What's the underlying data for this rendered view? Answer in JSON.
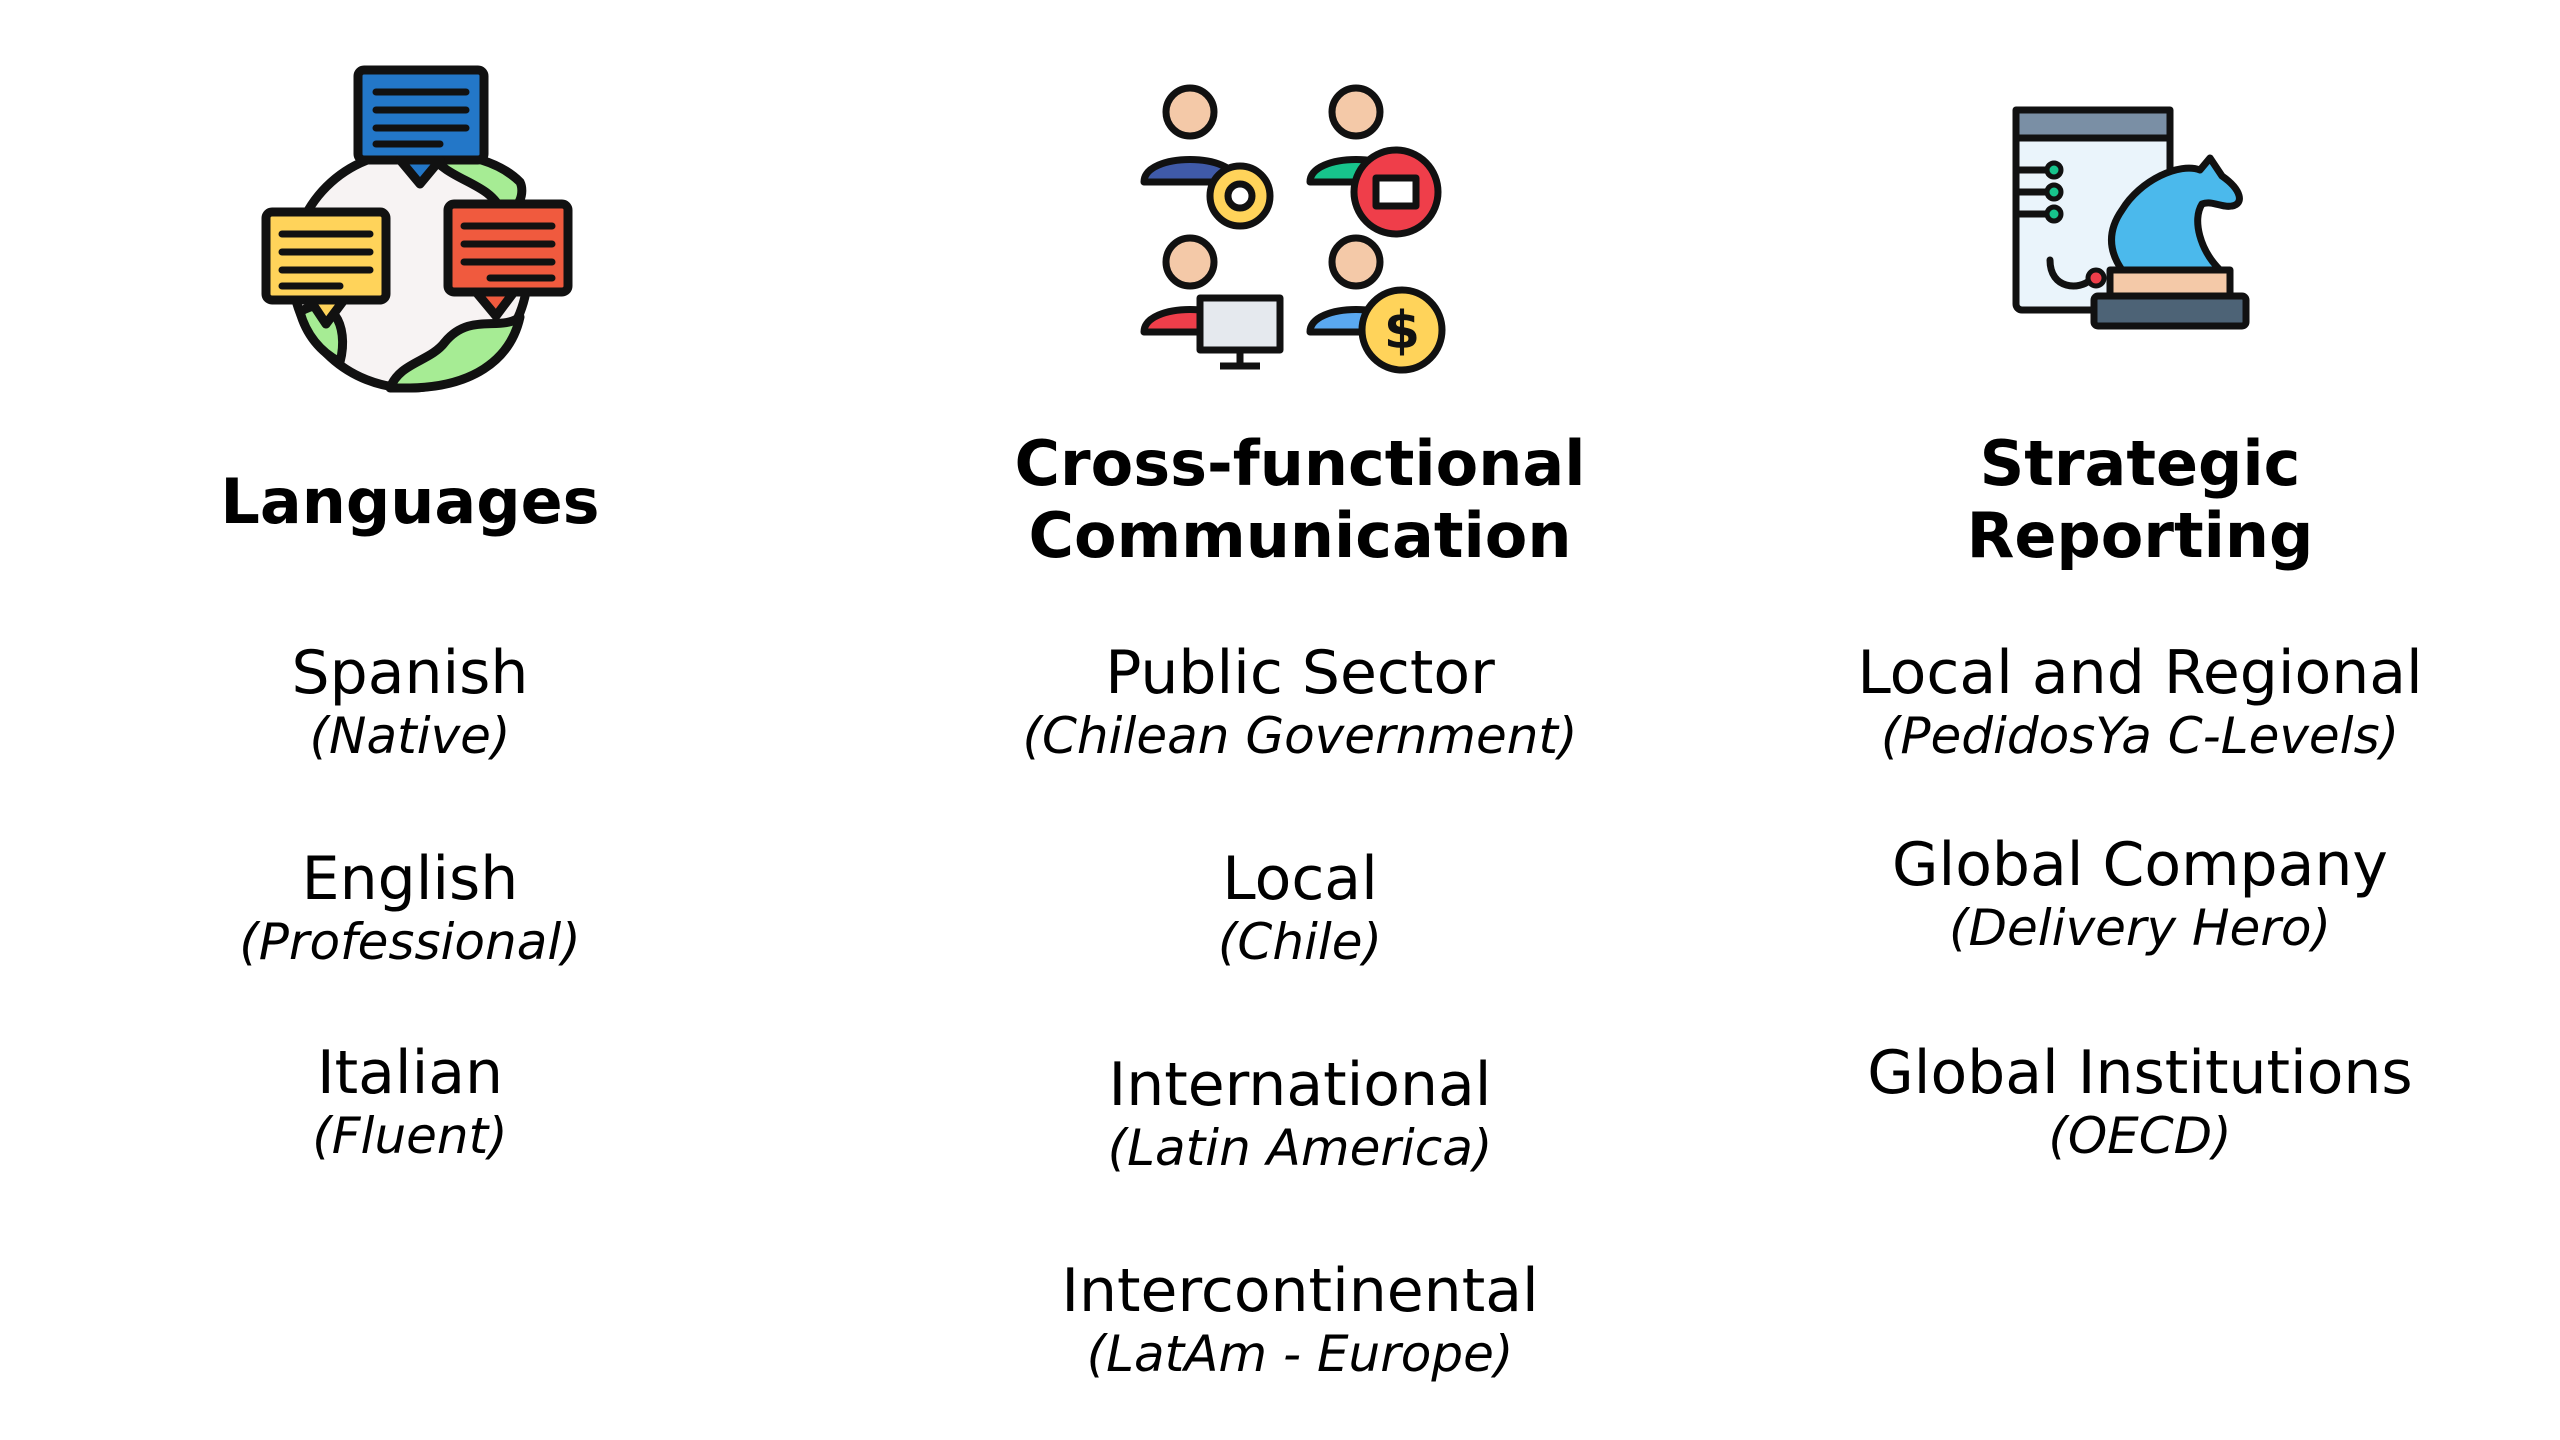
{
  "columns": [
    {
      "heading": "Languages",
      "icon": "globe-speech-bubbles-icon",
      "entries": [
        {
          "main": "Spanish",
          "sub": "(Native)"
        },
        {
          "main": "English",
          "sub": "(Professional)"
        },
        {
          "main": "Italian",
          "sub": "(Fluent)"
        }
      ]
    },
    {
      "heading_line1": "Cross-functional",
      "heading_line2": "Communication",
      "icon": "team-roles-icon",
      "entries": [
        {
          "main": "Public Sector",
          "sub": "(Chilean Government)"
        },
        {
          "main": "Local",
          "sub": "(Chile)"
        },
        {
          "main": "International",
          "sub": "(Latin America)"
        },
        {
          "main": "Intercontinental",
          "sub": "(LatAm - Europe)"
        }
      ]
    },
    {
      "heading_line1": "Strategic",
      "heading_line2": "Reporting",
      "icon": "strategy-chess-knight-icon",
      "entries": [
        {
          "main": "Local and Regional",
          "sub": "(PedidosYa C-Levels)"
        },
        {
          "main": "Global Company",
          "sub": "(Delivery Hero)"
        },
        {
          "main": "Global Institutions",
          "sub": "(OECD)"
        }
      ]
    }
  ]
}
